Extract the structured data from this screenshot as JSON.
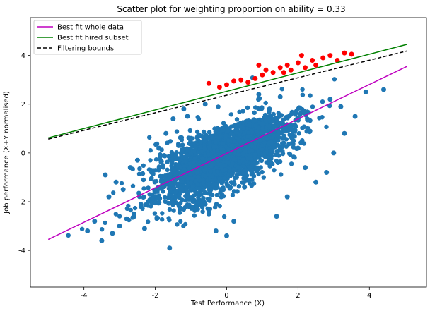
{
  "chart_data": {
    "type": "scatter",
    "title": "Scatter plot for weighting proportion on ability = 0.33",
    "xlabel": "Test Performance (X)",
    "ylabel": "Job performance (X+Y normalised)",
    "xlim": [
      -5.5,
      5.6
    ],
    "ylim": [
      -5.5,
      5.55
    ],
    "xticks": [
      -4,
      -2,
      0,
      2,
      4
    ],
    "yticks": [
      -4,
      -2,
      0,
      2,
      4
    ],
    "grid": false,
    "legend_position": "top-left",
    "series": [
      {
        "name": "Best fit whole data",
        "kind": "line",
        "color": "#bf00bf",
        "dash": "solid",
        "x": [
          -5,
          5.05
        ],
        "y": [
          -3.55,
          3.55
        ]
      },
      {
        "name": "Best fit hired subset",
        "kind": "line",
        "color": "#008000",
        "dash": "solid",
        "x": [
          -5,
          5.05
        ],
        "y": [
          0.62,
          4.45
        ]
      },
      {
        "name": "Filtering bounds",
        "kind": "line",
        "color": "#000000",
        "dash": "dashed",
        "x": [
          -5,
          5.05
        ],
        "y": [
          0.57,
          4.18
        ]
      }
    ],
    "scatter": [
      {
        "group": "all",
        "color": "#1f77b4",
        "x": [
          -3.5,
          -3.2,
          -3.0,
          -2.8,
          -3.7,
          -3.9,
          -3.3,
          -2.6,
          -2.4,
          -2.2,
          -2.9,
          -3.1,
          -3.4,
          -2.7,
          -2.5,
          -2.1,
          -1.9,
          -1.7,
          -1.5,
          -1.2,
          -1.0,
          -0.8,
          -0.5,
          -0.3,
          0.0,
          0.2,
          0.5,
          0.7,
          1.0,
          1.2,
          1.5,
          1.8,
          2.0,
          2.2,
          2.5,
          2.8,
          3.0,
          3.3,
          3.6,
          3.9,
          4.4,
          -1.6,
          -2.3,
          1.4,
          2.9,
          -1.1,
          0.9,
          1.7,
          -0.6,
          3.2
        ],
        "y": [
          -3.6,
          -3.3,
          -3.0,
          -2.7,
          -2.8,
          -3.2,
          -1.8,
          -2.5,
          -2.2,
          -2.0,
          -1.5,
          -1.2,
          -0.9,
          -0.6,
          -0.3,
          -0.8,
          0.2,
          0.8,
          1.4,
          1.8,
          0.6,
          -1.0,
          -2.5,
          -3.2,
          -3.4,
          -2.8,
          -1.4,
          0.3,
          1.2,
          1.8,
          2.3,
          1.0,
          0.2,
          -0.6,
          -1.2,
          -0.8,
          0.0,
          0.8,
          1.5,
          2.5,
          2.6,
          -3.9,
          -3.1,
          -2.6,
          2.2,
          1.5,
          2.4,
          -1.8,
          2.0,
          1.9
        ]
      },
      {
        "group": "hired",
        "color": "#ff0000",
        "x": [
          -0.5,
          -0.2,
          0.0,
          0.2,
          0.4,
          0.6,
          0.8,
          1.0,
          1.1,
          1.3,
          1.5,
          1.7,
          1.8,
          2.0,
          2.2,
          2.4,
          2.5,
          2.7,
          2.9,
          3.1,
          3.3,
          3.5,
          0.9,
          1.6,
          2.1
        ],
        "y": [
          2.85,
          2.7,
          2.8,
          2.95,
          3.0,
          2.9,
          3.05,
          3.2,
          3.4,
          3.3,
          3.5,
          3.6,
          3.4,
          3.7,
          3.5,
          3.8,
          3.6,
          3.9,
          4.0,
          3.8,
          4.1,
          4.05,
          3.6,
          3.3,
          4.0
        ]
      }
    ]
  }
}
